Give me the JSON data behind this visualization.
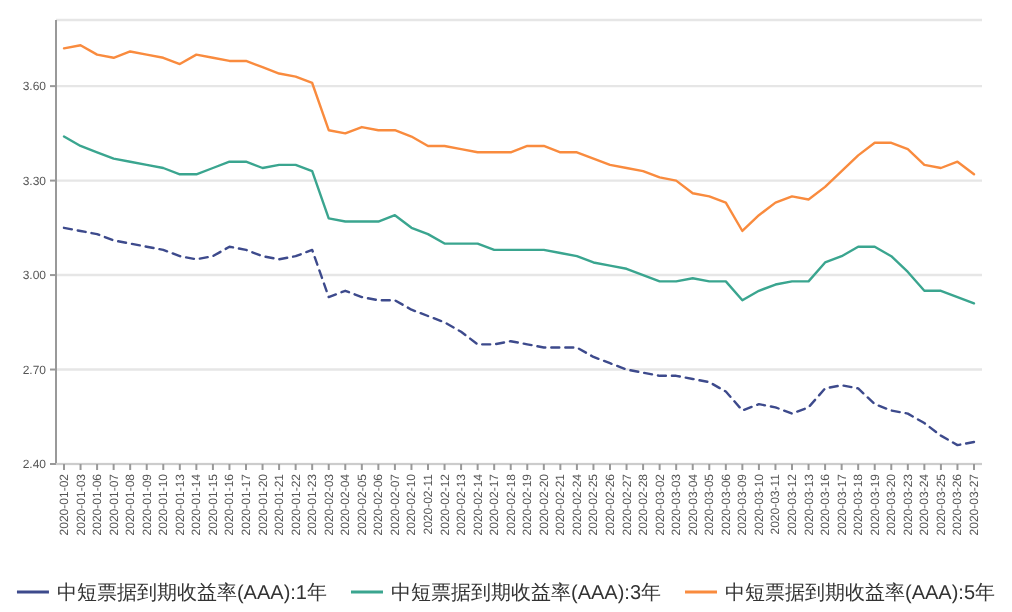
{
  "chart_data": {
    "type": "line",
    "categories": [
      "2020-01-02",
      "2020-01-03",
      "2020-01-06",
      "2020-01-07",
      "2020-01-08",
      "2020-01-09",
      "2020-01-10",
      "2020-01-13",
      "2020-01-14",
      "2020-01-15",
      "2020-01-16",
      "2020-01-17",
      "2020-01-20",
      "2020-01-21",
      "2020-01-22",
      "2020-01-23",
      "2020-02-03",
      "2020-02-04",
      "2020-02-05",
      "2020-02-06",
      "2020-02-07",
      "2020-02-10",
      "2020-02-11",
      "2020-02-12",
      "2020-02-13",
      "2020-02-14",
      "2020-02-17",
      "2020-02-18",
      "2020-02-19",
      "2020-02-20",
      "2020-02-21",
      "2020-02-24",
      "2020-02-25",
      "2020-02-26",
      "2020-02-27",
      "2020-02-28",
      "2020-03-02",
      "2020-03-03",
      "2020-03-04",
      "2020-03-05",
      "2020-03-06",
      "2020-03-09",
      "2020-03-10",
      "2020-03-11",
      "2020-03-12",
      "2020-03-13",
      "2020-03-16",
      "2020-03-17",
      "2020-03-18",
      "2020-03-19",
      "2020-03-20",
      "2020-03-23",
      "2020-03-24",
      "2020-03-25",
      "2020-03-26",
      "2020-03-27"
    ],
    "series": [
      {
        "name": "中短票据到期收益率(AAA):1年",
        "color": "#3d4a8c",
        "line_style": "dashed",
        "values": [
          3.15,
          3.14,
          3.13,
          3.11,
          3.1,
          3.09,
          3.08,
          3.06,
          3.05,
          3.06,
          3.09,
          3.08,
          3.06,
          3.05,
          3.06,
          3.08,
          2.93,
          2.95,
          2.93,
          2.92,
          2.92,
          2.89,
          2.87,
          2.85,
          2.82,
          2.78,
          2.78,
          2.79,
          2.78,
          2.77,
          2.77,
          2.77,
          2.74,
          2.72,
          2.7,
          2.69,
          2.68,
          2.68,
          2.67,
          2.66,
          2.63,
          2.57,
          2.59,
          2.58,
          2.56,
          2.58,
          2.64,
          2.65,
          2.64,
          2.59,
          2.57,
          2.56,
          2.53,
          2.49,
          2.46,
          2.47
        ]
      },
      {
        "name": "中短票据到期收益率(AAA):3年",
        "color": "#3aa58f",
        "line_style": "solid",
        "values": [
          3.44,
          3.41,
          3.39,
          3.37,
          3.36,
          3.35,
          3.34,
          3.32,
          3.32,
          3.34,
          3.36,
          3.36,
          3.34,
          3.35,
          3.35,
          3.33,
          3.18,
          3.17,
          3.17,
          3.17,
          3.19,
          3.15,
          3.13,
          3.1,
          3.1,
          3.1,
          3.08,
          3.08,
          3.08,
          3.08,
          3.07,
          3.06,
          3.04,
          3.03,
          3.02,
          3.0,
          2.98,
          2.98,
          2.99,
          2.98,
          2.98,
          2.92,
          2.95,
          2.97,
          2.98,
          2.98,
          3.04,
          3.06,
          3.09,
          3.09,
          3.06,
          3.01,
          2.95,
          2.95,
          2.93,
          2.91
        ]
      },
      {
        "name": "中短票据到期收益率(AAA):5年",
        "color": "#f98b3e",
        "line_style": "solid",
        "values": [
          3.72,
          3.73,
          3.7,
          3.69,
          3.71,
          3.7,
          3.69,
          3.67,
          3.7,
          3.69,
          3.68,
          3.68,
          3.66,
          3.64,
          3.63,
          3.61,
          3.46,
          3.45,
          3.47,
          3.46,
          3.46,
          3.44,
          3.41,
          3.41,
          3.4,
          3.39,
          3.39,
          3.39,
          3.41,
          3.41,
          3.39,
          3.39,
          3.37,
          3.35,
          3.34,
          3.33,
          3.31,
          3.3,
          3.26,
          3.25,
          3.23,
          3.14,
          3.19,
          3.23,
          3.25,
          3.24,
          3.28,
          3.33,
          3.38,
          3.42,
          3.42,
          3.4,
          3.35,
          3.34,
          3.36,
          3.32
        ]
      }
    ],
    "ylim": [
      2.4,
      3.81
    ],
    "yticks": [
      {
        "value": 2.4,
        "label": "2.40"
      },
      {
        "value": 2.7,
        "label": "2.70"
      },
      {
        "value": 3.0,
        "label": "3.00"
      },
      {
        "value": 3.3,
        "label": "3.30"
      },
      {
        "value": 3.6,
        "label": "3.60"
      }
    ],
    "grid": "y",
    "legend": "bottom",
    "marker": "none"
  }
}
